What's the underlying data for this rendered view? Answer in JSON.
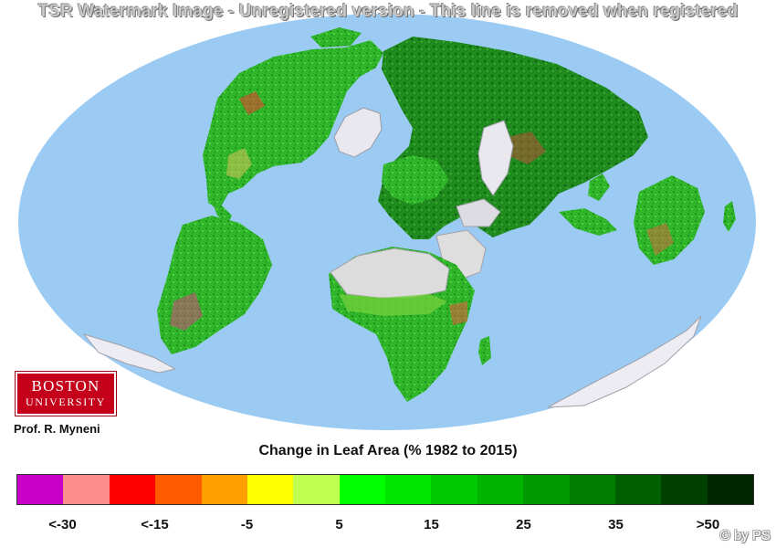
{
  "watermark": "TSR Watermark Image - Unregistered version - This line is removed when registered",
  "logo": {
    "line1": "BOSTON",
    "line2": "UNIVERSITY"
  },
  "credit": "Prof. R. Myneni",
  "legend": {
    "title": "Change in Leaf Area (% 1982 to 2015)",
    "colors": [
      "#c800c8",
      "#ff8c8c",
      "#ff0000",
      "#ff5a00",
      "#ffa000",
      "#ffff00",
      "#c0ff50",
      "#00ff00",
      "#00e600",
      "#00c800",
      "#00b400",
      "#009a00",
      "#007e00",
      "#006000",
      "#004000",
      "#002600"
    ],
    "tick_labels": [
      {
        "text": "<-30",
        "slot": 1
      },
      {
        "text": "<-15",
        "slot": 3
      },
      {
        "text": "-5",
        "slot": 5
      },
      {
        "text": "5",
        "slot": 7
      },
      {
        "text": "15",
        "slot": 9
      },
      {
        "text": "25",
        "slot": 11
      },
      {
        "text": "35",
        "slot": 13
      },
      {
        "text": ">50",
        "slot": 15
      }
    ]
  },
  "copyright": "© by PS",
  "map": {
    "projection": "ellipse world map",
    "ocean_color": "#9bcbf3",
    "ice_color": "#e8e8ee",
    "desert_color": "#d8d8d8",
    "vegetation_color": "#2fb52a"
  }
}
